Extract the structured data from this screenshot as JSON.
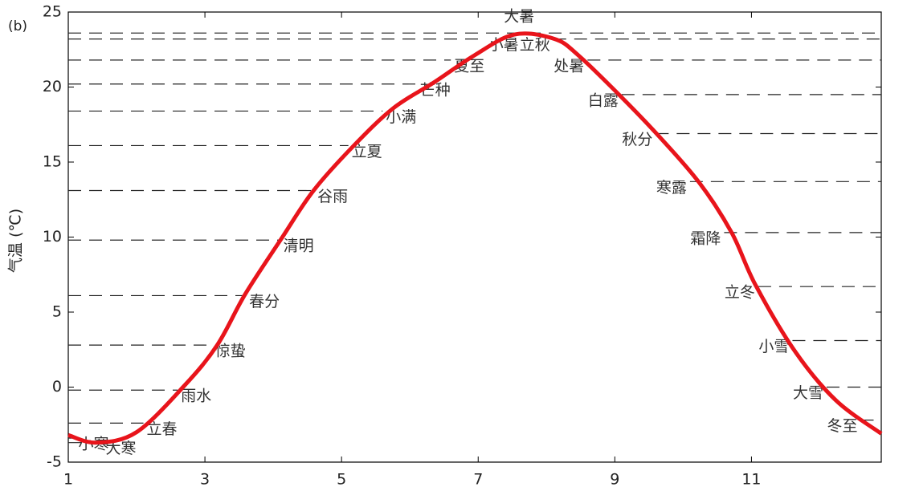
{
  "chart_data": {
    "type": "line",
    "panel_label": "(b)",
    "ylabel": "气温 (℃)",
    "xlim": [
      1,
      12.9
    ],
    "ylim": [
      -5,
      25
    ],
    "xticks": [
      1,
      3,
      5,
      7,
      9,
      11
    ],
    "yticks": [
      -5,
      0,
      5,
      10,
      15,
      20,
      25
    ],
    "series": [
      {
        "color": "#e8141b",
        "x": [
          1,
          1.41,
          2,
          2.7,
          3.18,
          3.59,
          4.12,
          4.59,
          5.18,
          5.76,
          6.35,
          6.94,
          7.53,
          8.12,
          8.47,
          9.06,
          9.65,
          10.24,
          10.71,
          11.06,
          11.65,
          12.24,
          12.9
        ],
        "values": [
          -3.2,
          -3.7,
          -3.0,
          0.1,
          2.8,
          6.2,
          9.9,
          13.1,
          16.1,
          18.6,
          20.3,
          22.1,
          23.5,
          23.2,
          22.1,
          19.5,
          16.7,
          13.6,
          10.3,
          6.8,
          2.3,
          -0.9,
          -3.1
        ]
      }
    ],
    "terms": {
      "labels": [
        "小寒",
        "大寒",
        "立春",
        "雨水",
        "惊蛰",
        "春分",
        "清明",
        "谷雨",
        "立夏",
        "小满",
        "芒种",
        "夏至",
        "小暑",
        "大暑",
        "立秋",
        "处暑",
        "白露",
        "秋分",
        "寒露",
        "霜降",
        "立冬",
        "小雪",
        "大雪",
        "冬至"
      ],
      "x": [
        1.1,
        1.5,
        2.1,
        2.6,
        3.1,
        3.6,
        4.1,
        4.6,
        5.1,
        5.6,
        6.1,
        6.6,
        7.1,
        7.6,
        8.1,
        8.6,
        9.1,
        9.6,
        10.1,
        10.6,
        11.1,
        11.6,
        12.1,
        12.6
      ],
      "values": [
        -3.4,
        -3.7,
        -2.4,
        -0.2,
        2.8,
        6.1,
        9.8,
        13.1,
        16.1,
        18.4,
        20.2,
        21.8,
        23.2,
        23.6,
        23.2,
        21.8,
        19.5,
        16.9,
        13.7,
        10.3,
        6.7,
        3.1,
        0.0,
        -2.2
      ]
    }
  }
}
